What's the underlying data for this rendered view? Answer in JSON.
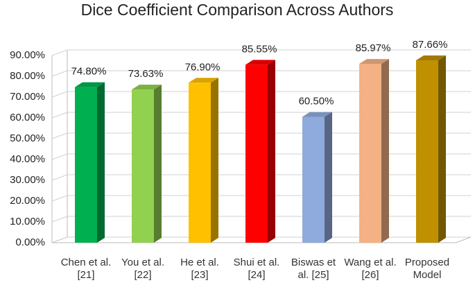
{
  "chart_data": {
    "type": "bar3d",
    "title": "Dice Coefficient Comparison Across Authors",
    "categories": [
      "Chen et al. [21]",
      "You et al. [22]",
      "He et al. [23]",
      "Shui et al. [24]",
      "Biswas et al. [25]",
      "Wang et al. [26]",
      "Proposed Model"
    ],
    "values": [
      74.8,
      73.63,
      76.9,
      85.55,
      60.5,
      85.97,
      87.66
    ],
    "value_labels": [
      "74.80%",
      "73.63%",
      "76.90%",
      "85.55%",
      "60.50%",
      "85.97%",
      "87.66%"
    ],
    "colors": [
      "#00b050",
      "#92d050",
      "#ffc000",
      "#ff0000",
      "#8faadc",
      "#f4b183",
      "#bf9000"
    ],
    "ylim": [
      0,
      90
    ],
    "yticks": [
      {
        "value": 0,
        "label": "0.00%"
      },
      {
        "value": 10,
        "label": "10.00%"
      },
      {
        "value": 20,
        "label": "20.00%"
      },
      {
        "value": 30,
        "label": "30.00%"
      },
      {
        "value": 40,
        "label": "40.00%"
      },
      {
        "value": 50,
        "label": "50.00%"
      },
      {
        "value": 60,
        "label": "60.00%"
      },
      {
        "value": 70,
        "label": "70.00%"
      },
      {
        "value": 80,
        "label": "80.00%"
      },
      {
        "value": 90,
        "label": "90.00%"
      }
    ],
    "grid": true
  }
}
